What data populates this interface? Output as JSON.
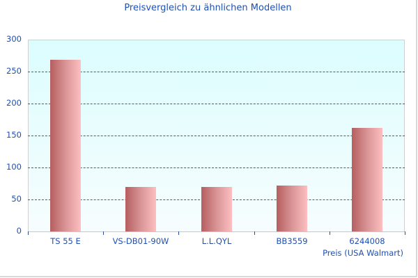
{
  "chart_data": {
    "type": "bar",
    "title": "Preisvergleich zu ähnlichen Modellen",
    "categories": [
      "TS 55 E",
      "VS-DB01-90W",
      "L.L.QYL",
      "BB3559",
      "6244008"
    ],
    "series": [
      {
        "name": "Preis (USA Walmart)",
        "values": [
          269,
          70,
          70,
          72,
          162
        ]
      }
    ],
    "xlabel": "Preis (USA Walmart)",
    "ylabel": "",
    "ylim": [
      0,
      300
    ],
    "yticks": [
      0,
      50,
      100,
      150,
      200,
      250,
      300
    ],
    "grid": true,
    "legend": "none",
    "colors": {
      "bar_dark": "#b55e60",
      "bar_light": "#fdbfc0",
      "text": "#1f4fb0",
      "grid": "#2d5cb8",
      "plot_bg_top": "#dcfdfe"
    }
  },
  "yticks_labels": [
    "0",
    "50",
    "100",
    "150",
    "200",
    "250",
    "300"
  ]
}
